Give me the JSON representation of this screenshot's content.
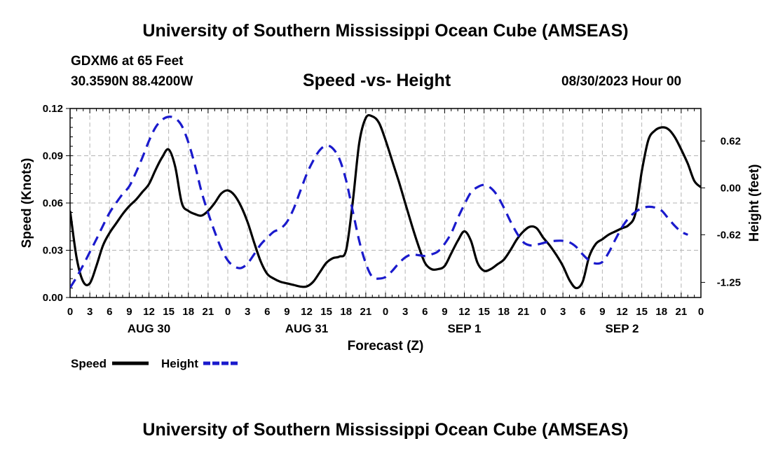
{
  "page": {
    "title": "University of Southern Mississippi Ocean Cube (AMSEAS)",
    "footer_title": "University of Southern Mississippi Ocean Cube (AMSEAS)",
    "station_line": "GDXM6 at 65 Feet",
    "coords_line": "30.3590N  88.4200W",
    "subtitle": "Speed -vs- Height",
    "date_line": "08/30/2023 Hour 00"
  },
  "colors": {
    "speed": "#000000",
    "height": "#1a1acc",
    "grid": "#b4b4b4"
  },
  "chart_data": {
    "type": "line",
    "title": "Speed -vs- Height",
    "xlabel": "Forecast (Z)",
    "ylabel": "Speed (Knots)",
    "y2label": "Height (feet)",
    "x_range": [
      0,
      96
    ],
    "ylim": [
      0,
      0.12
    ],
    "y2lim": [
      -1.45,
      1.05
    ],
    "yticks": [
      0.0,
      0.03,
      0.06,
      0.09,
      0.12
    ],
    "ytick_labels": [
      "0.00",
      "0.03",
      "0.06",
      "0.09",
      "0.12"
    ],
    "y2ticks": [
      0.62,
      0.0,
      -0.62,
      -1.25
    ],
    "y2tick_labels": [
      "0.62",
      "0.00",
      "-0.62",
      "-1.25"
    ],
    "xtick_hours": [
      0,
      3,
      6,
      9,
      12,
      15,
      18,
      21,
      24,
      27,
      30,
      33,
      36,
      39,
      42,
      45,
      48,
      51,
      54,
      57,
      60,
      63,
      66,
      69,
      72,
      75,
      78,
      81,
      84,
      87,
      90,
      93,
      96
    ],
    "xtick_labels": [
      "0",
      "3",
      "6",
      "9",
      "12",
      "15",
      "18",
      "21",
      "0",
      "3",
      "6",
      "9",
      "12",
      "15",
      "18",
      "21",
      "0",
      "3",
      "6",
      "9",
      "12",
      "15",
      "18",
      "21",
      "0",
      "3",
      "6",
      "9",
      "12",
      "15",
      "18",
      "21",
      "0"
    ],
    "date_labels": [
      {
        "hour": 12,
        "label": "AUG 30"
      },
      {
        "hour": 36,
        "label": "AUG 31"
      },
      {
        "hour": 60,
        "label": "SEP 1"
      },
      {
        "hour": 84,
        "label": "SEP 2"
      }
    ],
    "series": [
      {
        "name": "Speed",
        "axis": "left",
        "style": "solid",
        "points": [
          [
            0,
            0.055
          ],
          [
            1,
            0.025
          ],
          [
            2,
            0.01
          ],
          [
            3,
            0.009
          ],
          [
            4,
            0.02
          ],
          [
            5,
            0.033
          ],
          [
            6,
            0.041
          ],
          [
            7,
            0.047
          ],
          [
            8,
            0.053
          ],
          [
            9,
            0.058
          ],
          [
            10,
            0.062
          ],
          [
            11,
            0.067
          ],
          [
            12,
            0.072
          ],
          [
            13,
            0.081
          ],
          [
            14,
            0.089
          ],
          [
            15,
            0.094
          ],
          [
            16,
            0.083
          ],
          [
            17,
            0.06
          ],
          [
            18,
            0.055
          ],
          [
            19,
            0.053
          ],
          [
            20,
            0.052
          ],
          [
            21,
            0.055
          ],
          [
            22,
            0.06
          ],
          [
            23,
            0.066
          ],
          [
            24,
            0.068
          ],
          [
            25,
            0.065
          ],
          [
            26,
            0.058
          ],
          [
            27,
            0.048
          ],
          [
            28,
            0.035
          ],
          [
            29,
            0.023
          ],
          [
            30,
            0.015
          ],
          [
            31,
            0.012
          ],
          [
            32,
            0.01
          ],
          [
            33,
            0.009
          ],
          [
            34,
            0.008
          ],
          [
            35,
            0.007
          ],
          [
            36,
            0.007
          ],
          [
            37,
            0.01
          ],
          [
            38,
            0.016
          ],
          [
            39,
            0.022
          ],
          [
            40,
            0.025
          ],
          [
            41,
            0.026
          ],
          [
            42,
            0.03
          ],
          [
            43,
            0.06
          ],
          [
            44,
            0.098
          ],
          [
            45,
            0.114
          ],
          [
            46,
            0.115
          ],
          [
            47,
            0.111
          ],
          [
            48,
            0.1
          ],
          [
            49,
            0.087
          ],
          [
            50,
            0.074
          ],
          [
            51,
            0.06
          ],
          [
            52,
            0.046
          ],
          [
            53,
            0.033
          ],
          [
            54,
            0.022
          ],
          [
            55,
            0.018
          ],
          [
            56,
            0.018
          ],
          [
            57,
            0.02
          ],
          [
            58,
            0.028
          ],
          [
            59,
            0.036
          ],
          [
            60,
            0.042
          ],
          [
            61,
            0.036
          ],
          [
            62,
            0.022
          ],
          [
            63,
            0.017
          ],
          [
            64,
            0.018
          ],
          [
            65,
            0.021
          ],
          [
            66,
            0.024
          ],
          [
            67,
            0.03
          ],
          [
            68,
            0.037
          ],
          [
            69,
            0.042
          ],
          [
            70,
            0.045
          ],
          [
            71,
            0.044
          ],
          [
            72,
            0.038
          ],
          [
            73,
            0.033
          ],
          [
            74,
            0.027
          ],
          [
            75,
            0.02
          ],
          [
            76,
            0.011
          ],
          [
            77,
            0.006
          ],
          [
            78,
            0.01
          ],
          [
            79,
            0.026
          ],
          [
            80,
            0.034
          ],
          [
            81,
            0.037
          ],
          [
            82,
            0.04
          ],
          [
            83,
            0.042
          ],
          [
            84,
            0.044
          ],
          [
            85,
            0.046
          ],
          [
            86,
            0.053
          ],
          [
            87,
            0.08
          ],
          [
            88,
            0.1
          ],
          [
            89,
            0.106
          ],
          [
            90,
            0.108
          ],
          [
            91,
            0.107
          ],
          [
            92,
            0.102
          ],
          [
            93,
            0.094
          ],
          [
            94,
            0.085
          ],
          [
            95,
            0.074
          ],
          [
            96,
            0.07
          ]
        ]
      },
      {
        "name": "Height",
        "axis": "right",
        "style": "dashed",
        "points": [
          [
            0,
            -1.32
          ],
          [
            1,
            -1.18
          ],
          [
            2,
            -1.02
          ],
          [
            3,
            -0.85
          ],
          [
            4,
            -0.68
          ],
          [
            5,
            -0.5
          ],
          [
            6,
            -0.33
          ],
          [
            7,
            -0.2
          ],
          [
            8,
            -0.08
          ],
          [
            9,
            0.02
          ],
          [
            10,
            0.2
          ],
          [
            11,
            0.4
          ],
          [
            12,
            0.62
          ],
          [
            13,
            0.8
          ],
          [
            14,
            0.9
          ],
          [
            15,
            0.94
          ],
          [
            16,
            0.92
          ],
          [
            17,
            0.82
          ],
          [
            18,
            0.6
          ],
          [
            19,
            0.3
          ],
          [
            20,
            -0.05
          ],
          [
            21,
            -0.33
          ],
          [
            22,
            -0.58
          ],
          [
            23,
            -0.8
          ],
          [
            24,
            -0.96
          ],
          [
            25,
            -1.04
          ],
          [
            26,
            -1.06
          ],
          [
            27,
            -1.0
          ],
          [
            28,
            -0.88
          ],
          [
            29,
            -0.75
          ],
          [
            30,
            -0.66
          ],
          [
            31,
            -0.58
          ],
          [
            32,
            -0.54
          ],
          [
            33,
            -0.45
          ],
          [
            34,
            -0.28
          ],
          [
            35,
            -0.05
          ],
          [
            36,
            0.18
          ],
          [
            37,
            0.36
          ],
          [
            38,
            0.5
          ],
          [
            39,
            0.56
          ],
          [
            40,
            0.52
          ],
          [
            41,
            0.38
          ],
          [
            42,
            0.1
          ],
          [
            43,
            -0.3
          ],
          [
            44,
            -0.7
          ],
          [
            45,
            -1.0
          ],
          [
            46,
            -1.18
          ],
          [
            47,
            -1.2
          ],
          [
            48,
            -1.18
          ],
          [
            49,
            -1.1
          ],
          [
            50,
            -1.0
          ],
          [
            51,
            -0.92
          ],
          [
            52,
            -0.88
          ],
          [
            53,
            -0.89
          ],
          [
            54,
            -0.9
          ],
          [
            55,
            -0.88
          ],
          [
            56,
            -0.84
          ],
          [
            57,
            -0.74
          ],
          [
            58,
            -0.6
          ],
          [
            59,
            -0.4
          ],
          [
            60,
            -0.22
          ],
          [
            61,
            -0.06
          ],
          [
            62,
            0.01
          ],
          [
            63,
            0.04
          ],
          [
            64,
            0.0
          ],
          [
            65,
            -0.1
          ],
          [
            66,
            -0.26
          ],
          [
            67,
            -0.44
          ],
          [
            68,
            -0.6
          ],
          [
            69,
            -0.72
          ],
          [
            70,
            -0.76
          ],
          [
            71,
            -0.75
          ],
          [
            72,
            -0.73
          ],
          [
            73,
            -0.71
          ],
          [
            74,
            -0.7
          ],
          [
            75,
            -0.7
          ],
          [
            76,
            -0.72
          ],
          [
            77,
            -0.78
          ],
          [
            78,
            -0.88
          ],
          [
            79,
            -0.96
          ],
          [
            80,
            -1.0
          ],
          [
            81,
            -0.98
          ],
          [
            82,
            -0.85
          ],
          [
            83,
            -0.68
          ],
          [
            84,
            -0.52
          ],
          [
            85,
            -0.4
          ],
          [
            86,
            -0.32
          ],
          [
            87,
            -0.27
          ],
          [
            88,
            -0.25
          ],
          [
            89,
            -0.26
          ],
          [
            90,
            -0.3
          ],
          [
            91,
            -0.4
          ],
          [
            92,
            -0.5
          ],
          [
            93,
            -0.58
          ],
          [
            94,
            -0.62
          ]
        ]
      }
    ],
    "legend": [
      {
        "label": "Speed",
        "style": "solid"
      },
      {
        "label": "Height",
        "style": "dashed"
      }
    ]
  }
}
